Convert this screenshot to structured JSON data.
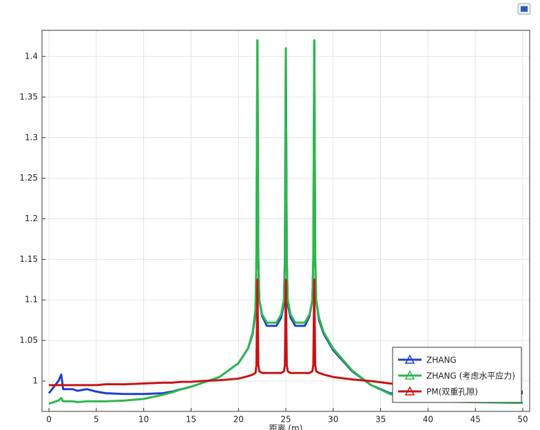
{
  "chart_data": {
    "type": "line",
    "x_label": "距离 (m)",
    "x": [
      0,
      1,
      1.3,
      1.5,
      2.5,
      3,
      4,
      5,
      6,
      8,
      10,
      12,
      13,
      14,
      15,
      16,
      18,
      20,
      21,
      21.5,
      21.8,
      21.9,
      22,
      22.1,
      22.2,
      22.5,
      23,
      24,
      24.5,
      24.8,
      24.9,
      25,
      25.1,
      25.2,
      25.5,
      26,
      27,
      27.5,
      27.8,
      27.9,
      28,
      28.1,
      28.2,
      28.5,
      29,
      30,
      32,
      34,
      36,
      38,
      40,
      45,
      50
    ],
    "series": [
      {
        "name": "ZHANG",
        "color": "#1f3fc8",
        "values": [
          0.985,
          1.0,
          1.008,
          0.99,
          0.99,
          0.988,
          0.99,
          0.987,
          0.985,
          0.984,
          0.984,
          0.985,
          0.987,
          0.99,
          0.993,
          0.997,
          1.005,
          1.022,
          1.04,
          1.058,
          1.085,
          1.15,
          1.42,
          1.15,
          1.1,
          1.08,
          1.068,
          1.068,
          1.078,
          1.095,
          1.15,
          1.41,
          1.15,
          1.095,
          1.078,
          1.068,
          1.068,
          1.08,
          1.1,
          1.15,
          1.42,
          1.15,
          1.1,
          1.075,
          1.058,
          1.038,
          1.012,
          0.995,
          0.985,
          0.982,
          0.98,
          0.979,
          0.985
        ]
      },
      {
        "name": "ZHANG (考虑水平应力)",
        "color": "#2db84a",
        "values": [
          0.972,
          0.976,
          0.979,
          0.975,
          0.975,
          0.974,
          0.975,
          0.975,
          0.975,
          0.976,
          0.978,
          0.983,
          0.986,
          0.99,
          0.993,
          0.997,
          1.005,
          1.022,
          1.04,
          1.06,
          1.088,
          1.15,
          1.42,
          1.15,
          1.1,
          1.082,
          1.072,
          1.072,
          1.082,
          1.1,
          1.15,
          1.41,
          1.15,
          1.1,
          1.082,
          1.072,
          1.072,
          1.082,
          1.1,
          1.15,
          1.42,
          1.15,
          1.1,
          1.078,
          1.06,
          1.04,
          1.013,
          0.995,
          0.984,
          0.978,
          0.975,
          0.974,
          0.973
        ]
      },
      {
        "name": "PM(双重孔隙)",
        "color": "#c81414",
        "values": [
          0.995,
          0.995,
          0.995,
          0.995,
          0.995,
          0.995,
          0.995,
          0.995,
          0.996,
          0.996,
          0.997,
          0.998,
          0.998,
          0.999,
          0.999,
          1.0,
          1.001,
          1.003,
          1.006,
          1.008,
          1.01,
          1.02,
          1.125,
          1.02,
          1.012,
          1.01,
          1.01,
          1.01,
          1.01,
          1.012,
          1.02,
          1.125,
          1.02,
          1.012,
          1.01,
          1.01,
          1.01,
          1.01,
          1.012,
          1.02,
          1.125,
          1.02,
          1.012,
          1.01,
          1.008,
          1.005,
          1.002,
          1.0,
          0.997,
          0.995,
          0.993,
          0.99,
          0.987
        ]
      }
    ],
    "xlim": [
      -0.73,
      50.73
    ],
    "ylim": [
      0.9626,
      1.4323
    ],
    "xticks": [
      0,
      5,
      10,
      15,
      20,
      25,
      30,
      35,
      40,
      45,
      50
    ],
    "yticks": [
      1,
      1.05,
      1.1,
      1.15,
      1.2,
      1.25,
      1.3,
      1.35,
      1.4
    ],
    "grid": true
  }
}
